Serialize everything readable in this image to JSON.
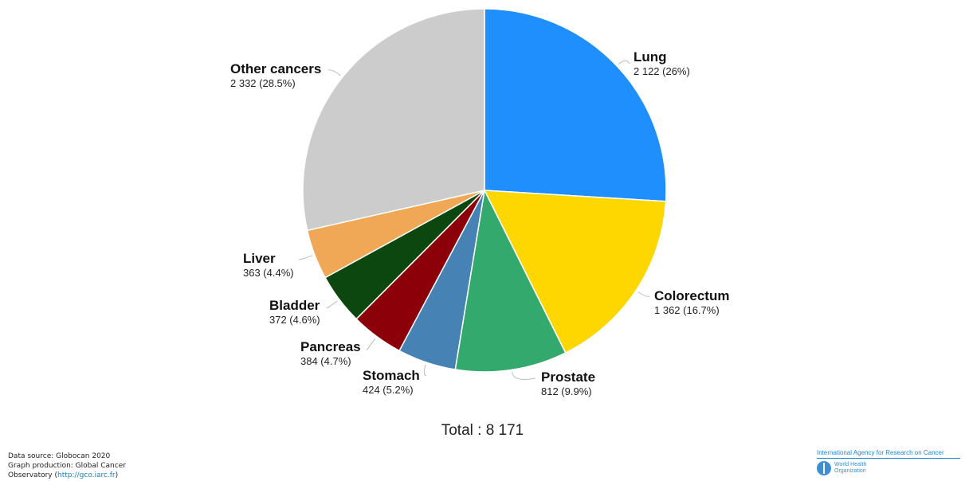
{
  "chart_data": {
    "type": "pie",
    "total_label": "Total : 8 171",
    "slices": [
      {
        "name": "Lung",
        "value": 2122,
        "value_label": "2 122 (26%)",
        "color": "#1f8ffe"
      },
      {
        "name": "Colorectum",
        "value": 1362,
        "value_label": "1 362 (16.7%)",
        "color": "#fed700"
      },
      {
        "name": "Prostate",
        "value": 812,
        "value_label": "812 (9.9%)",
        "color": "#34a96d"
      },
      {
        "name": "Stomach",
        "value": 424,
        "value_label": "424 (5.2%)",
        "color": "#4682b4"
      },
      {
        "name": "Pancreas",
        "value": 384,
        "value_label": "384 (4.7%)",
        "color": "#8c000a"
      },
      {
        "name": "Bladder",
        "value": 372,
        "value_label": "372 (4.6%)",
        "color": "#0b470e"
      },
      {
        "name": "Liver",
        "value": 363,
        "value_label": "363 (4.4%)",
        "color": "#f0a857"
      },
      {
        "name": "Other cancers",
        "value": 2332,
        "value_label": "2 332 (28.5%)",
        "color": "#cccccc"
      }
    ]
  },
  "footer": {
    "line1": "Data source: Globocan 2020",
    "line2": "Graph production: Global Cancer",
    "line3_prefix": "Observatory (",
    "url": "http://gco.iarc.fr",
    "line3_suffix": ")"
  },
  "logos": {
    "iarc": "International Agency for Research on Cancer",
    "who_line1": "World Health",
    "who_line2": "Organization"
  }
}
